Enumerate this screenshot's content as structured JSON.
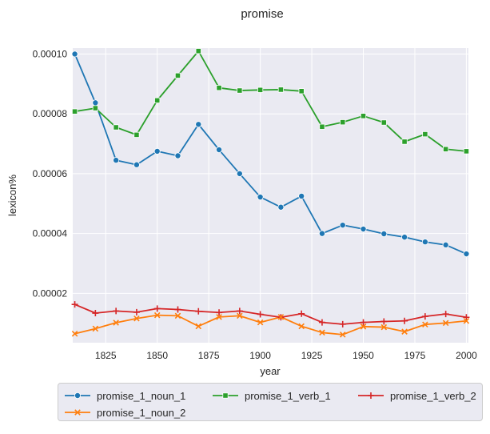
{
  "chart_data": {
    "type": "line",
    "title": "promise",
    "xlabel": "year",
    "ylabel": "lexicon%",
    "xlim": [
      1809,
      2001
    ],
    "ylim": [
      3.5e-06,
      0.000102
    ],
    "x_ticks": [
      1825,
      1850,
      1875,
      1900,
      1925,
      1950,
      1975,
      2000
    ],
    "y_ticks": [
      2e-05,
      4e-05,
      6e-05,
      8e-05,
      0.0001
    ],
    "y_tick_labels": [
      "0.00002",
      "0.00004",
      "0.00006",
      "0.00008",
      "0.00010"
    ],
    "grid": true,
    "legend_position": "bottom",
    "x": [
      1810,
      1820,
      1830,
      1840,
      1850,
      1860,
      1870,
      1880,
      1890,
      1900,
      1910,
      1920,
      1930,
      1940,
      1950,
      1960,
      1970,
      1980,
      1990,
      2000
    ],
    "series": [
      {
        "name": "promise_1_noun_1",
        "color": "#1f77b4",
        "marker": "circle",
        "values": [
          0.0001,
          8.37e-05,
          6.45e-05,
          6.3e-05,
          6.75e-05,
          6.6e-05,
          7.65e-05,
          6.8e-05,
          6e-05,
          5.22e-05,
          4.88e-05,
          5.25e-05,
          4e-05,
          4.28e-05,
          4.15e-05,
          3.99e-05,
          3.88e-05,
          3.72e-05,
          3.62e-05,
          3.32e-05
        ]
      },
      {
        "name": "promise_1_verb_1",
        "color": "#2ca02c",
        "marker": "square",
        "values": [
          8.08e-05,
          8.19e-05,
          7.55e-05,
          7.3e-05,
          8.45e-05,
          9.28e-05,
          0.000101,
          8.87e-05,
          8.78e-05,
          8.8e-05,
          8.81e-05,
          8.76e-05,
          7.57e-05,
          7.72e-05,
          7.93e-05,
          7.71e-05,
          7.07e-05,
          7.32e-05,
          6.82e-05,
          6.75e-05
        ]
      },
      {
        "name": "promise_1_verb_2",
        "color": "#d62728",
        "marker": "plus",
        "values": [
          1.63e-05,
          1.34e-05,
          1.41e-05,
          1.37e-05,
          1.49e-05,
          1.46e-05,
          1.4e-05,
          1.36e-05,
          1.41e-05,
          1.3e-05,
          1.2e-05,
          1.32e-05,
          1.03e-05,
          9.7e-06,
          1.03e-05,
          1.06e-05,
          1.08e-05,
          1.23e-05,
          1.31e-05,
          1.2e-05
        ]
      },
      {
        "name": "promise_1_noun_2",
        "color": "#ff7f0e",
        "marker": "x",
        "values": [
          6.5e-06,
          8.2e-06,
          1.02e-05,
          1.16e-05,
          1.27e-05,
          1.25e-05,
          9e-06,
          1.21e-05,
          1.25e-05,
          1.03e-05,
          1.21e-05,
          9e-06,
          6.9e-06,
          6.2e-06,
          8.9e-06,
          8.7e-06,
          7.2e-06,
          9.6e-06,
          1.01e-05,
          1.08e-05
        ]
      }
    ],
    "legend_order": [
      "promise_1_noun_1",
      "promise_1_verb_1",
      "promise_1_verb_2",
      "promise_1_noun_2"
    ]
  }
}
